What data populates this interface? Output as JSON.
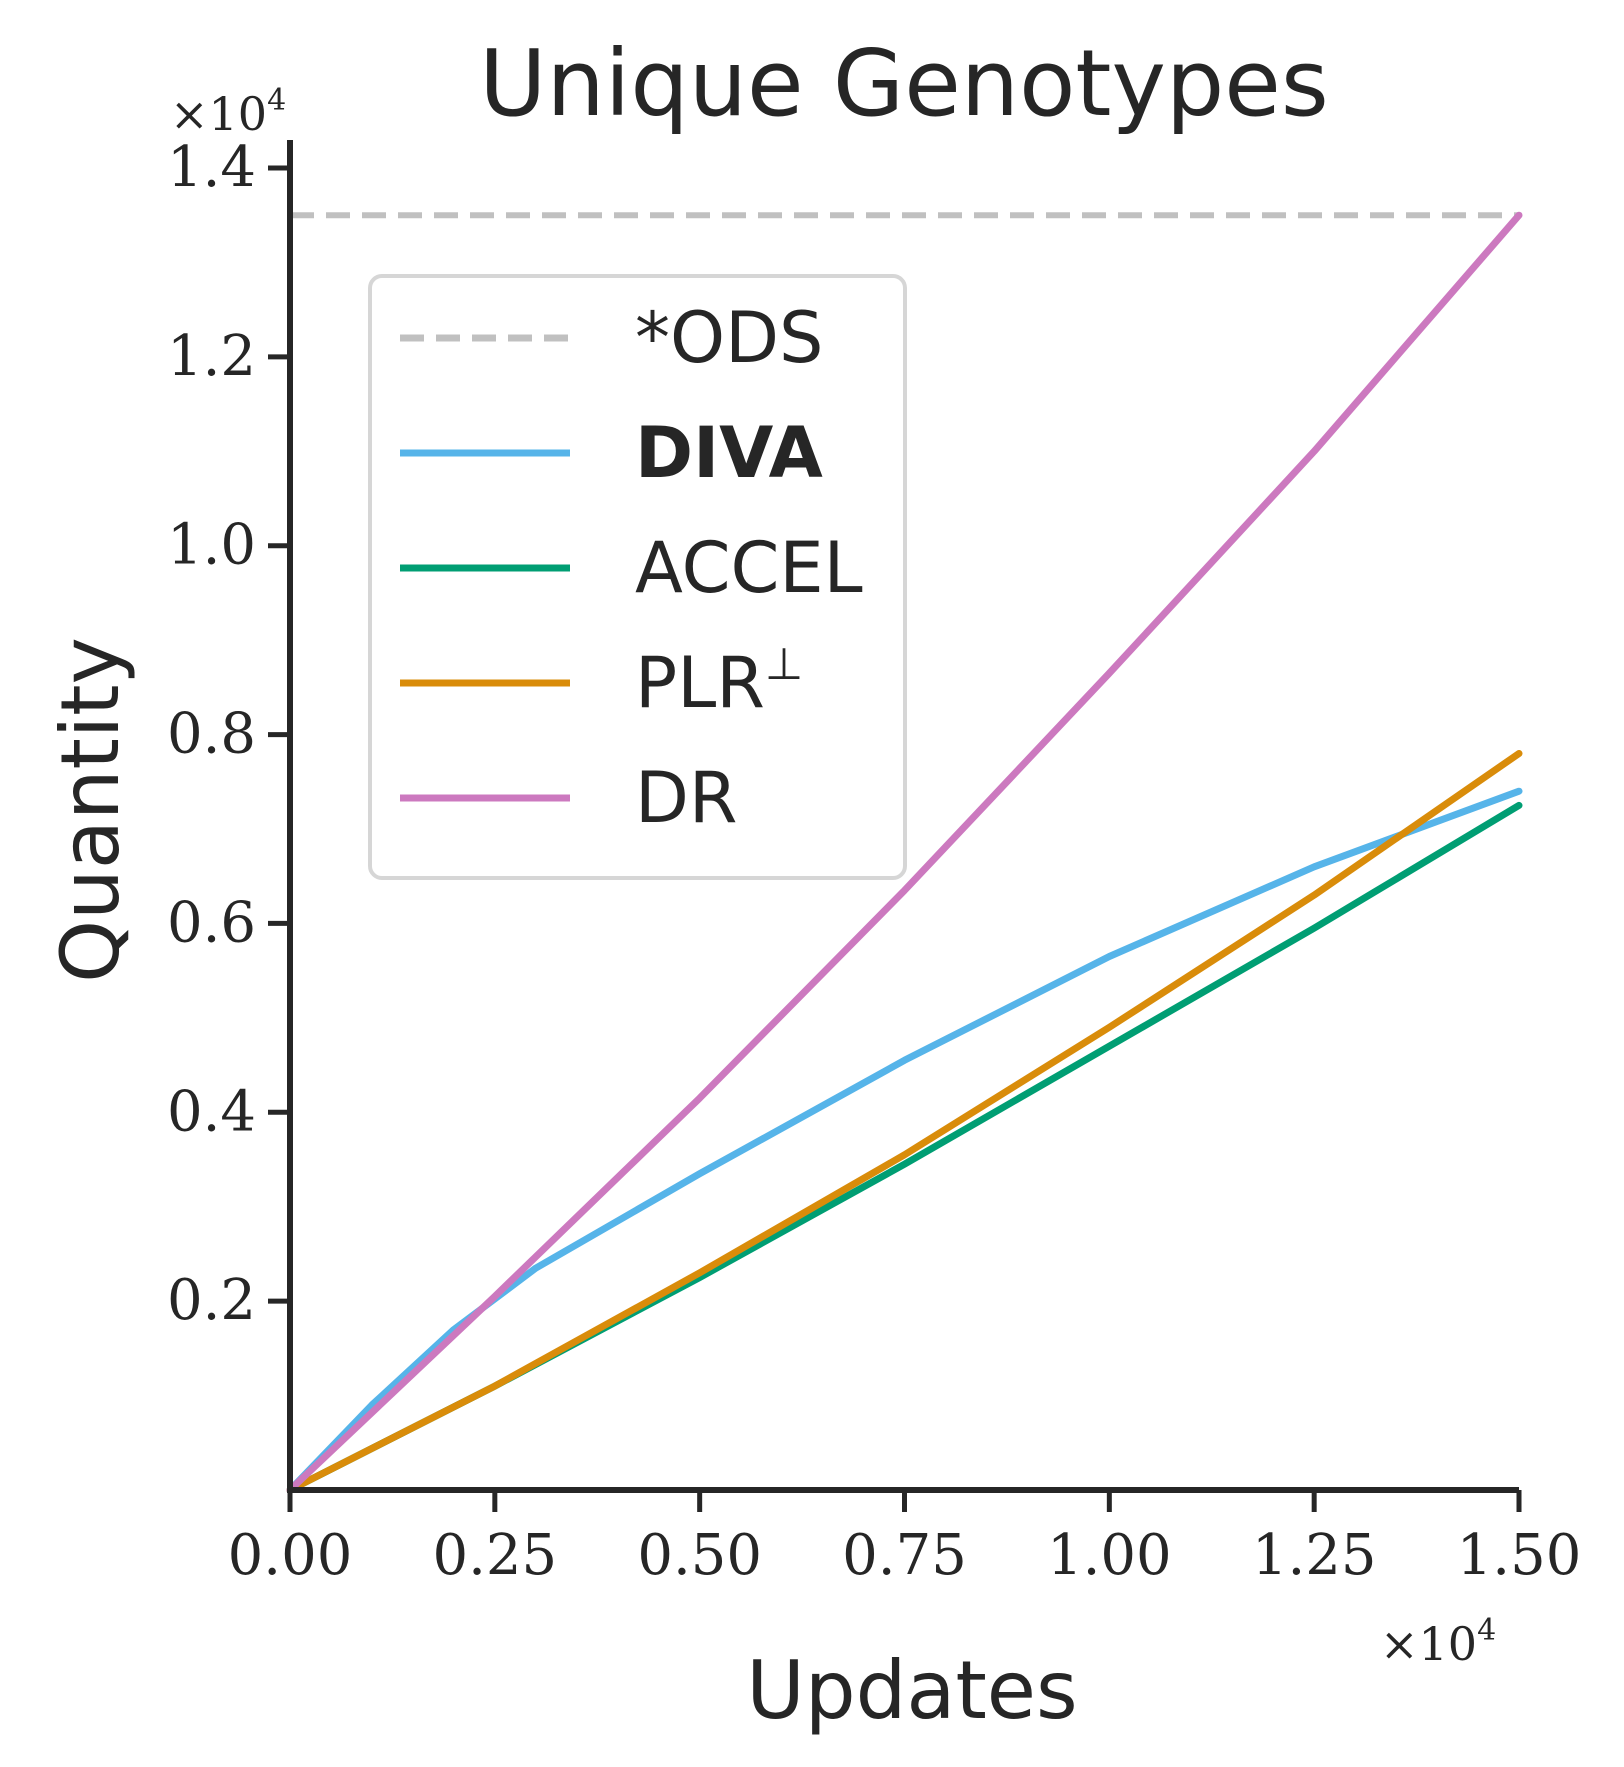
{
  "chart_data": {
    "type": "line",
    "title": "Unique Genotypes",
    "xlabel": "Updates",
    "ylabel": "Quantity",
    "x_multiplier": "×10",
    "x_multiplier_exp": "4",
    "y_multiplier": "×10",
    "y_multiplier_exp": "4",
    "xlim": [
      0,
      1.5
    ],
    "ylim": [
      0,
      1.43
    ],
    "xticks": [
      0.0,
      0.25,
      0.5,
      0.75,
      1.0,
      1.25,
      1.5
    ],
    "xtick_labels": [
      "0.00",
      "0.25",
      "0.50",
      "0.75",
      "1.00",
      "1.25",
      "1.50"
    ],
    "yticks": [
      0.2,
      0.4,
      0.6,
      0.8,
      1.0,
      1.2,
      1.4
    ],
    "ytick_labels": [
      "0.2",
      "0.4",
      "0.6",
      "0.8",
      "1.0",
      "1.2",
      "1.4"
    ],
    "grid": false,
    "legend_position": "upper-left",
    "reference_line": {
      "name": "*ODS",
      "y": 1.35,
      "color": "#c0c0c0",
      "style": "dashed"
    },
    "series": [
      {
        "name": "DIVA",
        "bold": true,
        "color": "#56b4e9",
        "x": [
          0,
          0.1,
          0.2,
          0.3,
          0.5,
          0.75,
          1.0,
          1.25,
          1.5
        ],
        "y": [
          0,
          0.09,
          0.17,
          0.235,
          0.335,
          0.455,
          0.565,
          0.66,
          0.74
        ]
      },
      {
        "name": "ACCEL",
        "bold": false,
        "color": "#009e73",
        "x": [
          0,
          0.25,
          0.5,
          0.75,
          1.0,
          1.25,
          1.5
        ],
        "y": [
          0,
          0.11,
          0.225,
          0.345,
          0.47,
          0.595,
          0.725
        ]
      },
      {
        "name": "PLR",
        "name_sup": "⊥",
        "bold": false,
        "color": "#d98c0a",
        "x": [
          0,
          0.25,
          0.5,
          0.75,
          1.0,
          1.25,
          1.5
        ],
        "y": [
          0,
          0.11,
          0.23,
          0.355,
          0.49,
          0.63,
          0.78
        ]
      },
      {
        "name": "DR",
        "bold": false,
        "color": "#cc79bf",
        "x": [
          0,
          0.25,
          0.5,
          0.75,
          1.0,
          1.25,
          1.5
        ],
        "y": [
          0,
          0.205,
          0.415,
          0.635,
          0.865,
          1.1,
          1.35
        ]
      }
    ]
  }
}
